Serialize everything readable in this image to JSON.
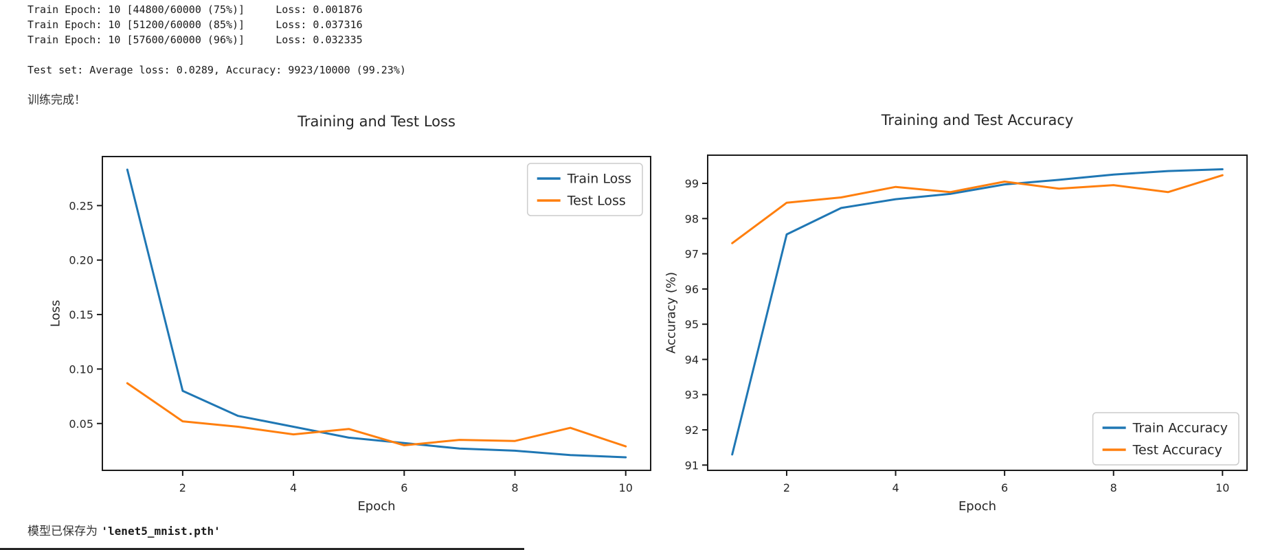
{
  "console": {
    "lines": [
      "Train Epoch: 10 [44800/60000 (75%)]     Loss: 0.001876",
      "Train Epoch: 10 [51200/60000 (85%)]     Loss: 0.037316",
      "Train Epoch: 10 [57600/60000 (96%)]     Loss: 0.032335",
      "",
      "Test set: Average loss: 0.0289, Accuracy: 9923/10000 (99.23%)",
      "",
      "训练完成！"
    ]
  },
  "footer": {
    "saved_text_cjk": "模型已保存为 ",
    "saved_path": "'lenet5_mnist.pth'"
  },
  "chart_data": [
    {
      "type": "line",
      "title": "Training and Test Loss",
      "xlabel": "Epoch",
      "ylabel": "Loss",
      "x": [
        1,
        2,
        3,
        4,
        5,
        6,
        7,
        8,
        9,
        10
      ],
      "series": [
        {
          "name": "Train Loss",
          "color": "#1f77b4",
          "values": [
            0.283,
            0.08,
            0.057,
            0.047,
            0.037,
            0.032,
            0.027,
            0.025,
            0.021,
            0.019
          ]
        },
        {
          "name": "Test Loss",
          "color": "#ff7f0e",
          "values": [
            0.087,
            0.052,
            0.047,
            0.04,
            0.045,
            0.03,
            0.035,
            0.034,
            0.046,
            0.029
          ]
        }
      ],
      "xticks": [
        2,
        4,
        6,
        8,
        10
      ],
      "yticks": [
        0.05,
        0.1,
        0.15,
        0.2,
        0.25
      ],
      "ytick_labels": [
        "0.05",
        "0.10",
        "0.15",
        "0.20",
        "0.25"
      ],
      "xlim": [
        0.55,
        10.45
      ],
      "ylim": [
        0.007,
        0.295
      ],
      "grid": false,
      "legend": {
        "loc": "upper right",
        "entries": [
          "Train Loss",
          "Test Loss"
        ]
      }
    },
    {
      "type": "line",
      "title": "Training and Test Accuracy",
      "xlabel": "Epoch",
      "ylabel": "Accuracy (%)",
      "x": [
        1,
        2,
        3,
        4,
        5,
        6,
        7,
        8,
        9,
        10
      ],
      "series": [
        {
          "name": "Train Accuracy",
          "color": "#1f77b4",
          "values": [
            91.3,
            97.55,
            98.3,
            98.55,
            98.7,
            98.97,
            99.1,
            99.25,
            99.35,
            99.4
          ]
        },
        {
          "name": "Test Accuracy",
          "color": "#ff7f0e",
          "values": [
            97.3,
            98.45,
            98.6,
            98.9,
            98.75,
            99.05,
            98.85,
            98.95,
            98.75,
            99.23
          ]
        }
      ],
      "xticks": [
        2,
        4,
        6,
        8,
        10
      ],
      "yticks": [
        91,
        92,
        93,
        94,
        95,
        96,
        97,
        98,
        99
      ],
      "ytick_labels": [
        "91",
        "92",
        "93",
        "94",
        "95",
        "96",
        "97",
        "98",
        "99"
      ],
      "xlim": [
        0.55,
        10.45
      ],
      "ylim": [
        90.85,
        99.8
      ],
      "grid": false,
      "legend": {
        "loc": "lower right",
        "entries": [
          "Train Accuracy",
          "Test Accuracy"
        ]
      }
    }
  ]
}
